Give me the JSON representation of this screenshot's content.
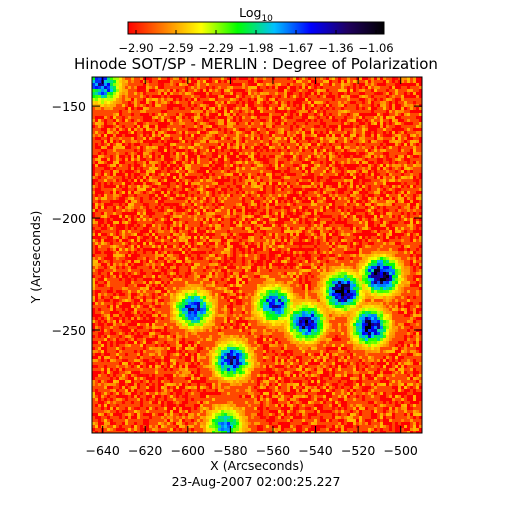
{
  "chart_data": {
    "type": "heatmap",
    "title": "Hinode SOT/SP - MERLIN : Degree of Polarization",
    "colorbar": {
      "label_base": "Log",
      "label_sub": "10",
      "tick_labels": [
        "-2.90",
        "-2.59",
        "-2.29",
        "-1.98",
        "-1.67",
        "-1.36",
        "-1.06"
      ],
      "range": [
        -2.9,
        -1.06
      ],
      "colormap": [
        "#ff0000",
        "#ff8000",
        "#ffff00",
        "#00ff00",
        "#00c0ff",
        "#0000ff",
        "#200060",
        "#000000"
      ]
    },
    "xlabel": "X (Arcseconds)",
    "ylabel": "Y (Arcseconds)",
    "xlim": [
      -645,
      -490
    ],
    "ylim": [
      -296,
      -137
    ],
    "x_ticks": [
      -640,
      -620,
      -600,
      -580,
      -560,
      -540,
      -520,
      -500
    ],
    "x_tick_labels": [
      "-640",
      "-620",
      "-600",
      "-580",
      "-560",
      "-540",
      "-520",
      "-500"
    ],
    "y_ticks": [
      -150,
      -200,
      -250
    ],
    "y_tick_labels": [
      "-150",
      "-200",
      "-250"
    ],
    "strong_polarization_regions": [
      {
        "x": -528,
        "y": -232,
        "level": -1.06
      },
      {
        "x": -510,
        "y": -225,
        "level": -1.06
      },
      {
        "x": -515,
        "y": -248,
        "level": -1.2
      },
      {
        "x": -545,
        "y": -246,
        "level": -1.3
      },
      {
        "x": -580,
        "y": -263,
        "level": -1.4
      },
      {
        "x": -598,
        "y": -240,
        "level": -1.4
      },
      {
        "x": -560,
        "y": -238,
        "level": -1.5
      },
      {
        "x": -641,
        "y": -140,
        "level": -1.5
      },
      {
        "x": -583,
        "y": -292,
        "level": -1.7
      }
    ],
    "background_level": -2.75,
    "date": "23-Aug-2007 02:00:25.227"
  }
}
